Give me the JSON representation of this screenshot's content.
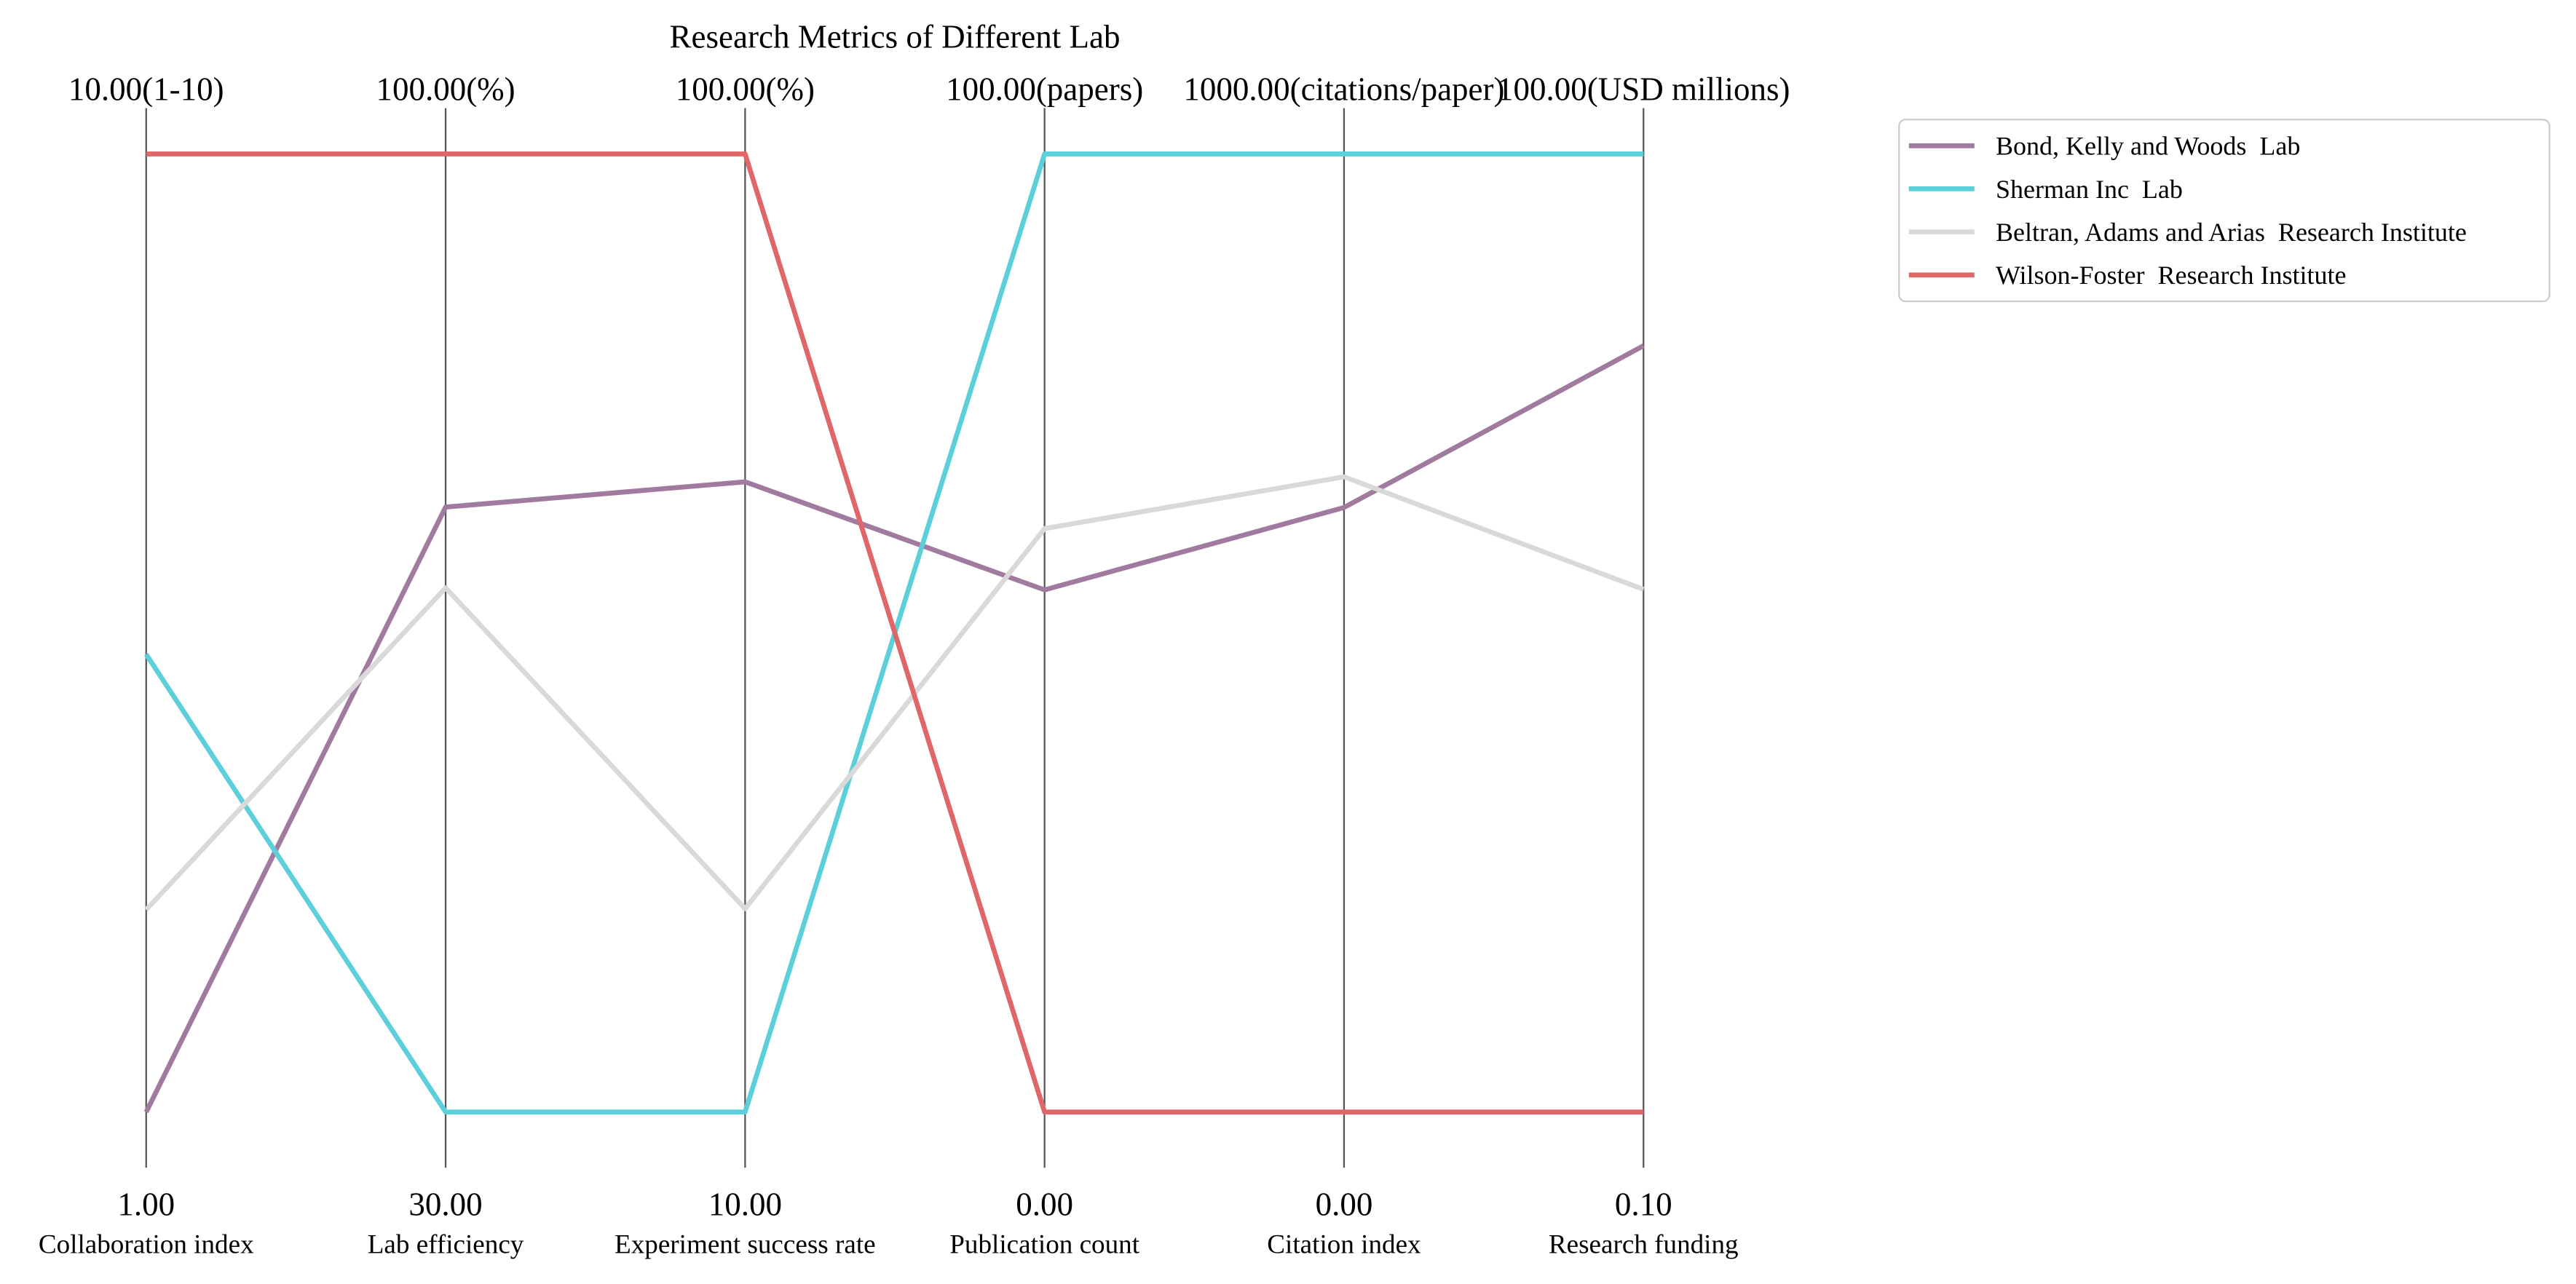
{
  "chart_data": {
    "type": "line",
    "title": "Research Metrics of Different Lab",
    "grid": false,
    "legend": "upper right, outside plot",
    "axes": [
      {
        "name": "Collaboration index",
        "min": 1,
        "max": 10,
        "min_label": "1.00",
        "max_label": "10.00(1-10)"
      },
      {
        "name": "Lab efficiency",
        "min": 30,
        "max": 100,
        "min_label": "30.00",
        "max_label": "100.00(%)"
      },
      {
        "name": "Experiment success rate",
        "min": 10,
        "max": 100,
        "min_label": "10.00",
        "max_label": "100.00(%)"
      },
      {
        "name": "Publication count",
        "min": 0,
        "max": 100,
        "min_label": "0.00",
        "max_label": "100.00(papers)"
      },
      {
        "name": "Citation index",
        "min": 0,
        "max": 1000,
        "min_label": "0.00",
        "max_label": "1000.00(citations/paper)"
      },
      {
        "name": "Research funding",
        "min": 0.1,
        "max": 100,
        "min_label": "0.10",
        "max_label": "100.00(USD millions)"
      }
    ],
    "series": [
      {
        "name": "Bond, Kelly and Woods  Lab",
        "color": "#a17a9f",
        "values": [
          1.0,
          74.2,
          69.2,
          54.5,
          631,
          80.0
        ]
      },
      {
        "name": "Sherman Inc  Lab",
        "color": "#5ccfdb",
        "values": [
          5.3,
          30.0,
          10.0,
          100.0,
          1000,
          100.0
        ]
      },
      {
        "name": "Beltran, Adams and Arias  Research Institute",
        "color": "#d9d9d9",
        "values": [
          2.9,
          68.3,
          29.1,
          60.9,
          663,
          54.6
        ]
      },
      {
        "name": "Wilson-Foster  Research Institute",
        "color": "#e06767",
        "values": [
          10.0,
          100.0,
          100.0,
          0.0,
          0,
          0.1
        ]
      }
    ]
  }
}
